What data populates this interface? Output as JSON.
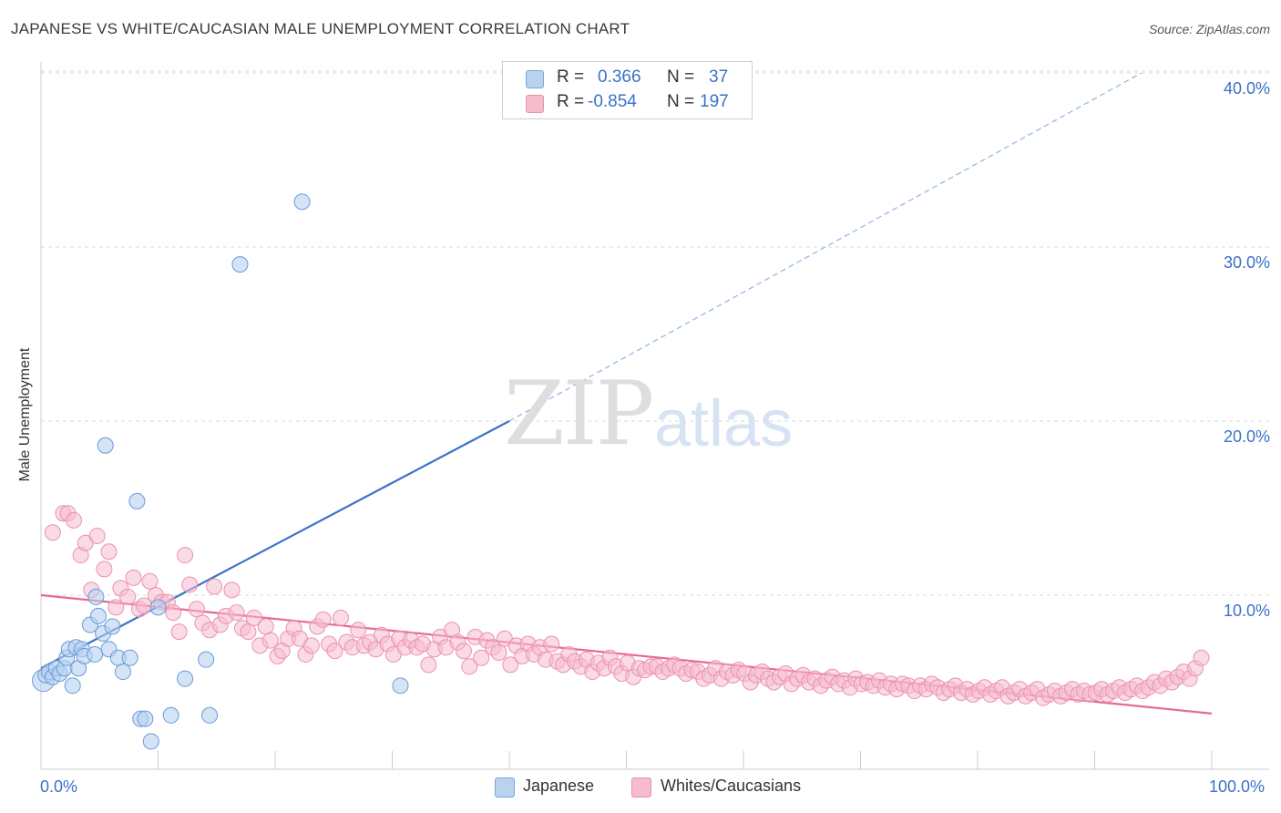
{
  "title": "JAPANESE VS WHITE/CAUCASIAN MALE UNEMPLOYMENT CORRELATION CHART",
  "source": "Source: ZipAtlas.com",
  "watermark": {
    "zip": "ZIP",
    "atlas": "atlas"
  },
  "colors": {
    "blue": "#3a72c9",
    "blue_fill": "#b8d2f0",
    "pink": "#e8698f",
    "pink_fill": "#f6bccd",
    "grid": "#d8d8d8"
  },
  "legend": {
    "rows": [
      {
        "r_label": "R =",
        "r_value": "0.366",
        "n_label": "N =",
        "n_value": "37"
      },
      {
        "r_label": "R =",
        "r_value": "-0.854",
        "n_label": "N =",
        "n_value": "197"
      }
    ]
  },
  "bottom_legend": {
    "japanese": "Japanese",
    "whites": "Whites/Caucasians"
  },
  "chart_data": {
    "type": "scatter",
    "title": "JAPANESE VS WHITE/CAUCASIAN MALE UNEMPLOYMENT CORRELATION CHART",
    "xlabel": "",
    "ylabel": "Male Unemployment",
    "xlim": [
      0,
      100
    ],
    "ylim": [
      0,
      42
    ],
    "x_tick_labels": [
      "0.0%",
      "100.0%"
    ],
    "y_ticks": [
      10,
      20,
      30,
      40
    ],
    "y_tick_labels": [
      "10.0%",
      "20.0%",
      "30.0%",
      "40.0%"
    ],
    "grid": true,
    "legend_position": "top-center",
    "series": [
      {
        "name": "Japanese",
        "color": "#3a72c9",
        "points": [
          [
            0.2,
            5.1
          ],
          [
            0.4,
            5.4
          ],
          [
            0.7,
            5.6
          ],
          [
            1.0,
            5.3
          ],
          [
            1.3,
            5.8
          ],
          [
            1.6,
            5.5
          ],
          [
            2.0,
            5.8
          ],
          [
            2.2,
            6.4
          ],
          [
            2.4,
            6.9
          ],
          [
            2.7,
            4.8
          ],
          [
            3.0,
            7.0
          ],
          [
            3.2,
            5.8
          ],
          [
            3.5,
            6.9
          ],
          [
            3.7,
            6.5
          ],
          [
            4.2,
            8.3
          ],
          [
            4.6,
            6.6
          ],
          [
            4.7,
            9.9
          ],
          [
            4.9,
            8.8
          ],
          [
            5.3,
            7.8
          ],
          [
            5.5,
            18.6
          ],
          [
            5.8,
            6.9
          ],
          [
            6.1,
            8.2
          ],
          [
            6.6,
            6.4
          ],
          [
            7.0,
            5.6
          ],
          [
            7.6,
            6.4
          ],
          [
            8.2,
            15.4
          ],
          [
            8.5,
            2.9
          ],
          [
            8.9,
            2.9
          ],
          [
            9.4,
            1.6
          ],
          [
            10.0,
            9.3
          ],
          [
            11.1,
            3.1
          ],
          [
            12.3,
            5.2
          ],
          [
            14.1,
            6.3
          ],
          [
            14.4,
            3.1
          ],
          [
            17.0,
            29.0
          ],
          [
            22.3,
            32.6
          ],
          [
            30.7,
            4.8
          ]
        ],
        "trend": {
          "x": [
            0,
            40
          ],
          "y": [
            5.8,
            20.0
          ]
        },
        "trend_extended": {
          "x": [
            40,
            94
          ],
          "y": [
            20.0,
            40.0
          ]
        }
      },
      {
        "name": "Whites/Caucasians",
        "color": "#e8698f",
        "points": [
          [
            1.0,
            13.6
          ],
          [
            1.9,
            14.7
          ],
          [
            2.3,
            14.7
          ],
          [
            2.8,
            14.3
          ],
          [
            3.4,
            12.3
          ],
          [
            3.8,
            13.0
          ],
          [
            4.3,
            10.3
          ],
          [
            4.8,
            13.4
          ],
          [
            5.4,
            11.5
          ],
          [
            5.8,
            12.5
          ],
          [
            6.4,
            9.3
          ],
          [
            6.8,
            10.4
          ],
          [
            7.4,
            9.9
          ],
          [
            7.9,
            11.0
          ],
          [
            8.4,
            9.2
          ],
          [
            8.8,
            9.4
          ],
          [
            9.3,
            10.8
          ],
          [
            9.8,
            10.0
          ],
          [
            10.3,
            9.6
          ],
          [
            10.8,
            9.6
          ],
          [
            11.3,
            9.0
          ],
          [
            11.8,
            7.9
          ],
          [
            12.3,
            12.3
          ],
          [
            12.7,
            10.6
          ],
          [
            13.3,
            9.2
          ],
          [
            13.8,
            8.4
          ],
          [
            14.4,
            8.0
          ],
          [
            14.8,
            10.5
          ],
          [
            15.3,
            8.3
          ],
          [
            15.8,
            8.8
          ],
          [
            16.3,
            10.3
          ],
          [
            16.7,
            9.0
          ],
          [
            17.2,
            8.1
          ],
          [
            17.7,
            7.9
          ],
          [
            18.2,
            8.7
          ],
          [
            18.7,
            7.1
          ],
          [
            19.2,
            8.2
          ],
          [
            19.6,
            7.4
          ],
          [
            20.2,
            6.5
          ],
          [
            20.6,
            6.8
          ],
          [
            21.1,
            7.5
          ],
          [
            21.6,
            8.1
          ],
          [
            22.1,
            7.5
          ],
          [
            22.6,
            6.6
          ],
          [
            23.1,
            7.1
          ],
          [
            23.6,
            8.2
          ],
          [
            24.1,
            8.6
          ],
          [
            24.6,
            7.2
          ],
          [
            25.1,
            6.8
          ],
          [
            25.6,
            8.7
          ],
          [
            26.1,
            7.3
          ],
          [
            26.6,
            7.0
          ],
          [
            27.1,
            8.0
          ],
          [
            27.6,
            7.1
          ],
          [
            28.1,
            7.3
          ],
          [
            28.6,
            6.9
          ],
          [
            29.1,
            7.7
          ],
          [
            29.6,
            7.2
          ],
          [
            30.1,
            6.6
          ],
          [
            30.6,
            7.5
          ],
          [
            31.1,
            7.0
          ],
          [
            31.6,
            7.4
          ],
          [
            32.1,
            7.0
          ],
          [
            32.6,
            7.2
          ],
          [
            33.1,
            6.0
          ],
          [
            33.6,
            6.9
          ],
          [
            34.1,
            7.6
          ],
          [
            34.6,
            7.0
          ],
          [
            35.1,
            8.0
          ],
          [
            35.6,
            7.3
          ],
          [
            36.1,
            6.8
          ],
          [
            36.6,
            5.9
          ],
          [
            37.1,
            7.6
          ],
          [
            37.6,
            6.4
          ],
          [
            38.1,
            7.4
          ],
          [
            38.6,
            7.0
          ],
          [
            39.1,
            6.7
          ],
          [
            39.6,
            7.5
          ],
          [
            40.1,
            6.0
          ],
          [
            40.6,
            7.1
          ],
          [
            41.1,
            6.5
          ],
          [
            41.6,
            7.2
          ],
          [
            42.1,
            6.6
          ],
          [
            42.6,
            7.0
          ],
          [
            43.1,
            6.3
          ],
          [
            43.6,
            7.2
          ],
          [
            44.1,
            6.2
          ],
          [
            44.6,
            6.0
          ],
          [
            45.1,
            6.6
          ],
          [
            45.6,
            6.2
          ],
          [
            46.1,
            5.9
          ],
          [
            46.6,
            6.3
          ],
          [
            47.1,
            5.6
          ],
          [
            47.6,
            6.1
          ],
          [
            48.1,
            5.8
          ],
          [
            48.6,
            6.4
          ],
          [
            49.1,
            5.9
          ],
          [
            49.6,
            5.5
          ],
          [
            50.1,
            6.1
          ],
          [
            50.6,
            5.3
          ],
          [
            51.1,
            5.8
          ],
          [
            51.6,
            5.7
          ],
          [
            52.1,
            5.9
          ],
          [
            52.6,
            5.9
          ],
          [
            53.1,
            5.6
          ],
          [
            53.6,
            5.8
          ],
          [
            54.1,
            6.0
          ],
          [
            54.6,
            5.8
          ],
          [
            55.1,
            5.5
          ],
          [
            55.6,
            5.7
          ],
          [
            56.1,
            5.6
          ],
          [
            56.6,
            5.2
          ],
          [
            57.1,
            5.4
          ],
          [
            57.6,
            5.8
          ],
          [
            58.1,
            5.2
          ],
          [
            58.6,
            5.6
          ],
          [
            59.1,
            5.4
          ],
          [
            59.6,
            5.7
          ],
          [
            60.1,
            5.5
          ],
          [
            60.6,
            5.0
          ],
          [
            61.1,
            5.4
          ],
          [
            61.6,
            5.6
          ],
          [
            62.1,
            5.2
          ],
          [
            62.6,
            5.0
          ],
          [
            63.1,
            5.3
          ],
          [
            63.6,
            5.5
          ],
          [
            64.1,
            4.9
          ],
          [
            64.6,
            5.2
          ],
          [
            65.1,
            5.4
          ],
          [
            65.6,
            5.0
          ],
          [
            66.1,
            5.2
          ],
          [
            66.6,
            4.8
          ],
          [
            67.1,
            5.1
          ],
          [
            67.6,
            5.3
          ],
          [
            68.1,
            4.9
          ],
          [
            68.6,
            5.1
          ],
          [
            69.1,
            4.7
          ],
          [
            69.6,
            5.2
          ],
          [
            70.1,
            4.9
          ],
          [
            70.6,
            5.0
          ],
          [
            71.1,
            4.8
          ],
          [
            71.6,
            5.1
          ],
          [
            72.1,
            4.7
          ],
          [
            72.6,
            4.9
          ],
          [
            73.1,
            4.6
          ],
          [
            73.6,
            4.9
          ],
          [
            74.1,
            4.8
          ],
          [
            74.6,
            4.5
          ],
          [
            75.1,
            4.8
          ],
          [
            75.6,
            4.6
          ],
          [
            76.1,
            4.9
          ],
          [
            76.6,
            4.7
          ],
          [
            77.1,
            4.4
          ],
          [
            77.6,
            4.6
          ],
          [
            78.1,
            4.8
          ],
          [
            78.6,
            4.4
          ],
          [
            79.1,
            4.6
          ],
          [
            79.6,
            4.3
          ],
          [
            80.1,
            4.5
          ],
          [
            80.6,
            4.7
          ],
          [
            81.1,
            4.3
          ],
          [
            81.6,
            4.5
          ],
          [
            82.1,
            4.7
          ],
          [
            82.6,
            4.2
          ],
          [
            83.1,
            4.4
          ],
          [
            83.6,
            4.6
          ],
          [
            84.1,
            4.2
          ],
          [
            84.6,
            4.4
          ],
          [
            85.1,
            4.6
          ],
          [
            85.6,
            4.1
          ],
          [
            86.1,
            4.3
          ],
          [
            86.6,
            4.5
          ],
          [
            87.1,
            4.2
          ],
          [
            87.6,
            4.4
          ],
          [
            88.1,
            4.6
          ],
          [
            88.6,
            4.3
          ],
          [
            89.1,
            4.5
          ],
          [
            89.6,
            4.3
          ],
          [
            90.1,
            4.4
          ],
          [
            90.6,
            4.6
          ],
          [
            91.1,
            4.3
          ],
          [
            91.6,
            4.5
          ],
          [
            92.1,
            4.7
          ],
          [
            92.6,
            4.4
          ],
          [
            93.1,
            4.6
          ],
          [
            93.6,
            4.8
          ],
          [
            94.1,
            4.5
          ],
          [
            94.6,
            4.7
          ],
          [
            95.1,
            5.0
          ],
          [
            95.6,
            4.8
          ],
          [
            96.1,
            5.2
          ],
          [
            96.6,
            5.0
          ],
          [
            97.1,
            5.3
          ],
          [
            97.6,
            5.6
          ],
          [
            98.1,
            5.2
          ],
          [
            98.6,
            5.8
          ],
          [
            99.1,
            6.4
          ]
        ],
        "trend": {
          "x": [
            0,
            100
          ],
          "y": [
            10.0,
            3.2
          ]
        }
      }
    ]
  }
}
